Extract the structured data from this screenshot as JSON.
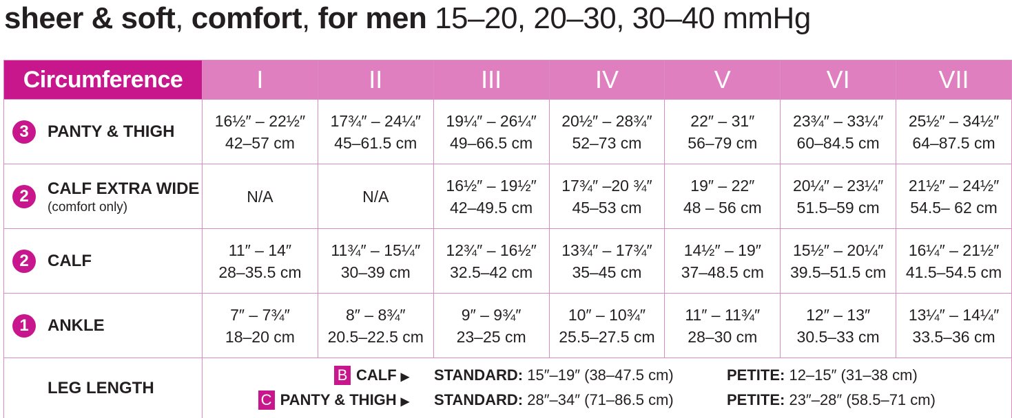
{
  "title": {
    "bold": "sheer & soft",
    "mid1": ", ",
    "bold2": "comfort",
    "mid2": ", ",
    "bold3": "for men",
    "rest": " 15–20, 20–30, 30–40 mmHg"
  },
  "colors": {
    "brand": "#c8168c",
    "header": "#e07fc0",
    "border": "#d98cc4"
  },
  "table": {
    "header": "Circumference",
    "sizes": [
      "I",
      "II",
      "III",
      "IV",
      "V",
      "VI",
      "VII"
    ],
    "rows": [
      {
        "badge": "3",
        "label": "PANTY & THIGH",
        "sub": "",
        "cells": [
          [
            "16½″ – 22½″",
            "42–57 cm"
          ],
          [
            "17¾″ – 24¼″",
            "45–61.5 cm"
          ],
          [
            "19¼″ – 26¼″",
            "49–66.5 cm"
          ],
          [
            "20½″ – 28¾″",
            "52–73 cm"
          ],
          [
            "22″ – 31″",
            "56–79 cm"
          ],
          [
            "23¾″ – 33¼″",
            "60–84.5 cm"
          ],
          [
            "25½″ – 34½″",
            "64–87.5 cm"
          ]
        ]
      },
      {
        "badge": "2",
        "label": "CALF EXTRA WIDE",
        "sub": "(comfort only)",
        "cells": [
          [
            "N/A",
            ""
          ],
          [
            "N/A",
            ""
          ],
          [
            "16½″ – 19½″",
            "42–49.5 cm"
          ],
          [
            "17¾″ –20 ¾″",
            "45–53 cm"
          ],
          [
            "19″ – 22″",
            "48 – 56 cm"
          ],
          [
            "20¼″ – 23¼″",
            "51.5–59 cm"
          ],
          [
            "21½″ – 24½″",
            "54.5– 62 cm"
          ]
        ]
      },
      {
        "badge": "2",
        "label": "CALF",
        "sub": "",
        "cells": [
          [
            "11″ – 14″",
            "28–35.5 cm"
          ],
          [
            "11¾″ – 15¼″",
            "30–39 cm"
          ],
          [
            "12¾″ – 16½″",
            "32.5–42 cm"
          ],
          [
            "13¾″ – 17¾″",
            "35–45 cm"
          ],
          [
            "14½″ – 19″",
            "37–48.5 cm"
          ],
          [
            "15½″ – 20¼″",
            "39.5–51.5 cm"
          ],
          [
            "16¼″ – 21½″",
            "41.5–54.5 cm"
          ]
        ]
      },
      {
        "badge": "1",
        "label": "ANKLE",
        "sub": "",
        "cells": [
          [
            "7″ – 7¾″",
            "18–20 cm"
          ],
          [
            "8″ – 8¾″",
            "20.5–22.5 cm"
          ],
          [
            "9″ – 9¾″",
            "23–25 cm"
          ],
          [
            "10″ – 10¾″",
            "25.5–27.5 cm"
          ],
          [
            "11″ – 11¾″",
            "28–30 cm"
          ],
          [
            "12″ – 13″",
            "30.5–33 cm"
          ],
          [
            "13¼″ – 14¼″",
            "33.5–36 cm"
          ]
        ]
      }
    ],
    "leg_length": {
      "label": "LEG LENGTH",
      "lines": [
        {
          "letter": "B",
          "part": "CALF",
          "std_label": "STANDARD:",
          "std": " 15″–19″ (38–47.5 cm)",
          "pet_label": "PETITE:",
          "pet": " 12–15″ (31–38 cm)"
        },
        {
          "letter": "C",
          "part": "PANTY & THIGH",
          "std_label": "STANDARD:",
          "std": " 28″–34″ (71–86.5 cm)",
          "pet_label": "PETITE:",
          "pet": " 23″–28″ (58.5–71 cm)"
        }
      ]
    }
  }
}
